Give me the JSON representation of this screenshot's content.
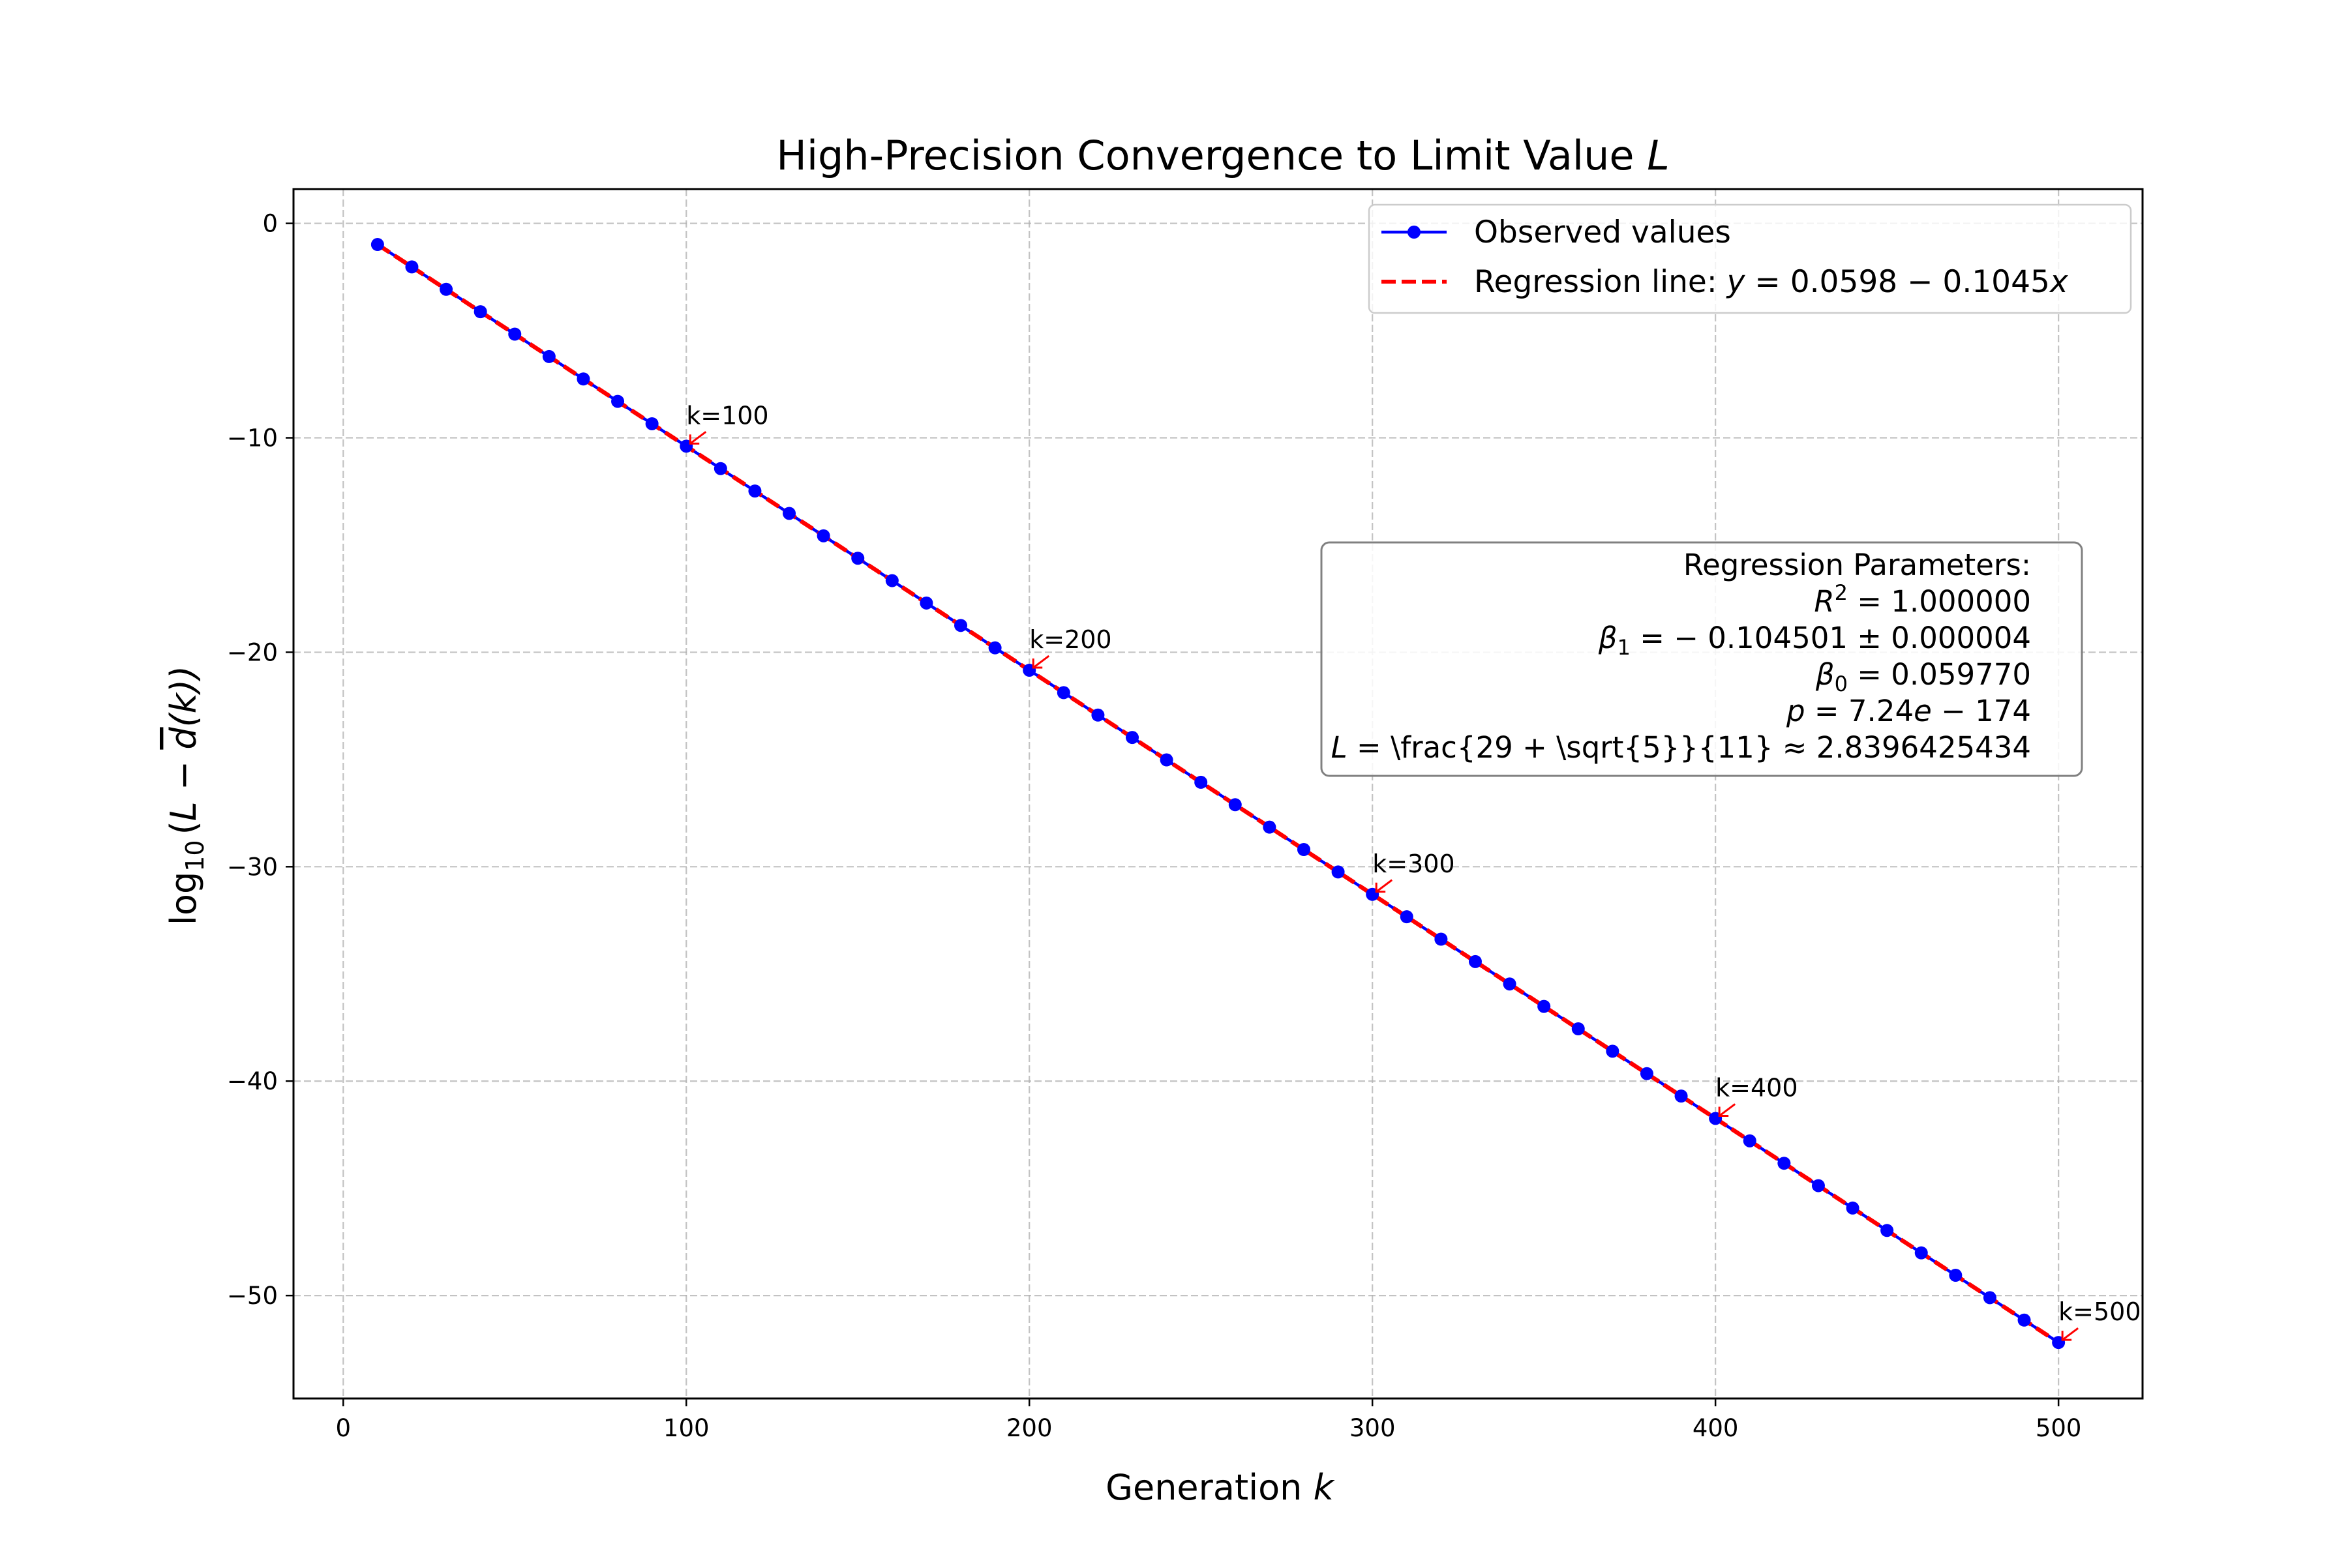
{
  "chart_data": {
    "type": "line",
    "title_main": "High-Precision Convergence to Limit Value ",
    "title_var": "L",
    "xlabel_main": "Generation ",
    "xlabel_var": "k",
    "ylabel": {
      "log": "log",
      "base": "10",
      "open": "(",
      "L": "L",
      "minus": " − ",
      "d": "d",
      "args": "(k))"
    },
    "xlim": [
      -14.5,
      524.5
    ],
    "ylim": [
      -54.8,
      1.6
    ],
    "xticks": [
      0,
      100,
      200,
      300,
      400,
      500
    ],
    "xtick_labels": [
      "0",
      "100",
      "200",
      "300",
      "400",
      "500"
    ],
    "yticks": [
      0,
      -10,
      -20,
      -30,
      -40,
      -50
    ],
    "ytick_labels": [
      "0",
      "−10",
      "−20",
      "−30",
      "−40",
      "−50"
    ],
    "grid": true,
    "series": [
      {
        "name": "Observed values",
        "color": "#0000ff",
        "marker": "circle",
        "x": [
          10,
          20,
          30,
          40,
          50,
          60,
          70,
          80,
          90,
          100,
          110,
          120,
          130,
          140,
          150,
          160,
          170,
          180,
          190,
          200,
          210,
          220,
          230,
          240,
          250,
          260,
          270,
          280,
          290,
          300,
          310,
          320,
          330,
          340,
          350,
          360,
          370,
          380,
          390,
          400,
          410,
          420,
          430,
          440,
          450,
          460,
          470,
          480,
          490,
          500
        ],
        "y": [
          -0.985,
          -2.03,
          -3.075,
          -4.12,
          -5.165,
          -6.21,
          -7.255,
          -8.3,
          -9.345,
          -10.39,
          -11.435,
          -12.48,
          -13.525,
          -14.57,
          -15.615,
          -16.66,
          -17.705,
          -18.75,
          -19.795,
          -20.84,
          -21.885,
          -22.93,
          -23.975,
          -25.02,
          -26.065,
          -27.11,
          -28.155,
          -29.2,
          -30.245,
          -31.29,
          -32.335,
          -33.38,
          -34.425,
          -35.47,
          -36.515,
          -37.56,
          -38.605,
          -39.65,
          -40.695,
          -41.74,
          -42.785,
          -43.83,
          -44.875,
          -45.92,
          -46.965,
          -48.01,
          -49.055,
          -50.1,
          -51.145,
          -52.19
        ]
      },
      {
        "name": "Regression line",
        "color": "#ff0000",
        "style": "dashed",
        "intercept": 0.0598,
        "slope": -0.1045,
        "x_range": [
          10,
          500
        ]
      }
    ],
    "legend": {
      "placement": "top-right",
      "observed_label": "Observed values",
      "regression_prefix": "Regression line: ",
      "regression_eq": {
        "y": "y",
        "eq": " = 0.0598 − 0.1045",
        "x": "x"
      }
    },
    "annotations": [
      {
        "label": "k=100",
        "x": 100,
        "y": -10.39
      },
      {
        "label": "k=200",
        "x": 200,
        "y": -20.84
      },
      {
        "label": "k=300",
        "x": 300,
        "y": -31.29
      },
      {
        "label": "k=400",
        "x": 400,
        "y": -41.74
      },
      {
        "label": "k=500",
        "x": 500,
        "y": -52.19
      }
    ],
    "annotation_color": "#ff0000",
    "stats_box": {
      "placement": "right-middle",
      "heading": "Regression Parameters:",
      "r2": {
        "sym": "R",
        "sup": "2",
        "val": " = 1.000000"
      },
      "beta1": {
        "sym": "β",
        "sub": "1",
        "val": " = − 0.104501 ± 0.000004"
      },
      "beta0": {
        "sym": "β",
        "sub": "0",
        "val": " = 0.059770"
      },
      "p": {
        "sym": "p",
        "val": " = 7.24",
        "e": "e",
        "rest": " − 174"
      },
      "limit": {
        "sym": "L",
        "val": " = \\frac{29 + \\sqrt{5}}{11} ≈ 2.8396425434"
      }
    }
  }
}
